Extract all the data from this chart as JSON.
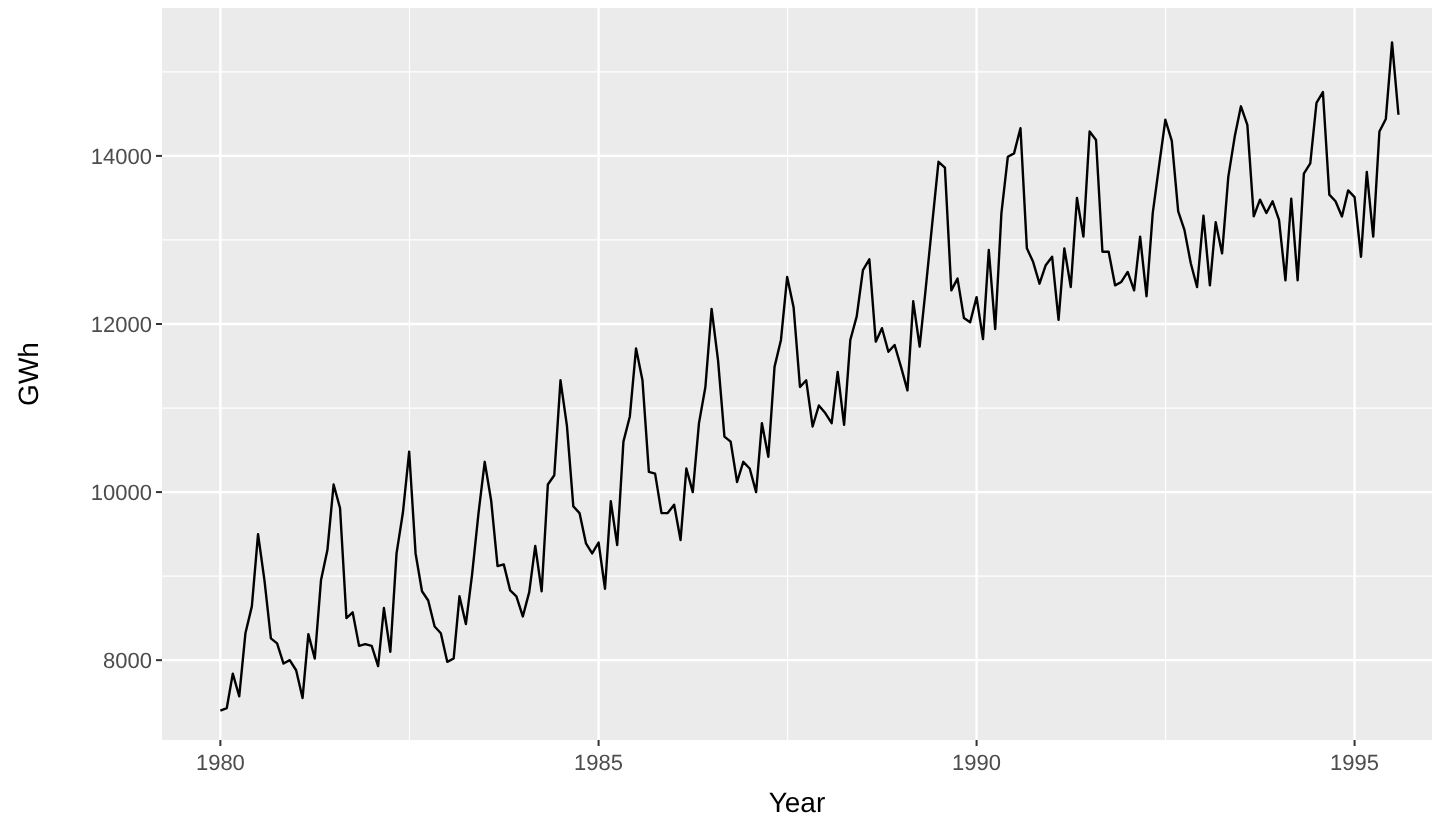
{
  "chart_data": {
    "type": "line",
    "xlabel": "Year",
    "ylabel": "GWh",
    "xlim": [
      "1979-03-25",
      "1996-01-10"
    ],
    "xticks": [
      "1980",
      "1985",
      "1990",
      "1995"
    ],
    "ylim": [
      7050,
      15760
    ],
    "yticks": [
      8000,
      10000,
      12000,
      14000
    ],
    "grid": true,
    "x": [
      "1980-01",
      "1980-02",
      "1980-03",
      "1980-04",
      "1980-05",
      "1980-06",
      "1980-07",
      "1980-08",
      "1980-09",
      "1980-10",
      "1980-11",
      "1980-12",
      "1981-01",
      "1981-02",
      "1981-03",
      "1981-04",
      "1981-05",
      "1981-06",
      "1981-07",
      "1981-08",
      "1981-09",
      "1981-10",
      "1981-11",
      "1981-12",
      "1982-01",
      "1982-02",
      "1982-03",
      "1982-04",
      "1982-05",
      "1982-06",
      "1982-07",
      "1982-08",
      "1982-09",
      "1982-10",
      "1982-11",
      "1982-12",
      "1983-01",
      "1983-02",
      "1983-03",
      "1983-04",
      "1983-05",
      "1983-06",
      "1983-07",
      "1983-08",
      "1983-09",
      "1983-10",
      "1983-11",
      "1983-12",
      "1984-01",
      "1984-02",
      "1984-03",
      "1984-04",
      "1984-05",
      "1984-06",
      "1984-07",
      "1984-08",
      "1984-09",
      "1984-10",
      "1984-11",
      "1984-12",
      "1985-01",
      "1985-02",
      "1985-03",
      "1985-04",
      "1985-05",
      "1985-06",
      "1985-07",
      "1985-08",
      "1985-09",
      "1985-10",
      "1985-11",
      "1985-12",
      "1986-01",
      "1986-02",
      "1986-03",
      "1986-04",
      "1986-05",
      "1986-06",
      "1986-07",
      "1986-08",
      "1986-09",
      "1986-10",
      "1986-11",
      "1986-12",
      "1987-01",
      "1987-02",
      "1987-03",
      "1987-04",
      "1987-05",
      "1987-06",
      "1987-07",
      "1987-08",
      "1987-09",
      "1987-10",
      "1987-11",
      "1987-12",
      "1988-01",
      "1988-02",
      "1988-03",
      "1988-04",
      "1988-05",
      "1988-06",
      "1988-07",
      "1988-08",
      "1988-09",
      "1988-10",
      "1988-11",
      "1988-12",
      "1989-01",
      "1989-02",
      "1989-03",
      "1989-04",
      "1989-05",
      "1989-06",
      "1989-07",
      "1989-08",
      "1989-09",
      "1989-10",
      "1989-11",
      "1989-12",
      "1990-01",
      "1990-02",
      "1990-03",
      "1990-04",
      "1990-05",
      "1990-06",
      "1990-07",
      "1990-08",
      "1990-09",
      "1990-10",
      "1990-11",
      "1990-12",
      "1991-01",
      "1991-02",
      "1991-03",
      "1991-04",
      "1991-05",
      "1991-06",
      "1991-07",
      "1991-08",
      "1991-09",
      "1991-10",
      "1991-11",
      "1991-12",
      "1992-01",
      "1992-02",
      "1992-03",
      "1992-04",
      "1992-05",
      "1992-06",
      "1992-07",
      "1992-08",
      "1992-09",
      "1992-10",
      "1992-11",
      "1992-12",
      "1993-01",
      "1993-02",
      "1993-03",
      "1993-04",
      "1993-05",
      "1993-06",
      "1993-07",
      "1993-08",
      "1993-09",
      "1993-10",
      "1993-11",
      "1993-12",
      "1994-01",
      "1994-02",
      "1994-03",
      "1994-04",
      "1994-05",
      "1994-06",
      "1994-07",
      "1994-08",
      "1994-09",
      "1994-10",
      "1994-11",
      "1994-12",
      "1995-01",
      "1995-02",
      "1995-03",
      "1995-04",
      "1995-05",
      "1995-06",
      "1995-07",
      "1995-08"
    ],
    "series": [
      {
        "color": "#000000",
        "values": [
          7400,
          7430,
          7840,
          7570,
          8320,
          8640,
          9500,
          8950,
          8260,
          8200,
          7960,
          8000,
          7880,
          7550,
          8310,
          8020,
          8950,
          9310,
          10090,
          9810,
          8500,
          8570,
          8170,
          8190,
          8170,
          7930,
          8620,
          8100,
          9270,
          9760,
          10480,
          9270,
          8820,
          8710,
          8400,
          8320,
          7980,
          8020,
          8760,
          8430,
          9020,
          9750,
          10360,
          9900,
          9120,
          9140,
          8830,
          8760,
          8520,
          8810,
          9360,
          8820,
          10090,
          10200,
          11330,
          10790,
          9830,
          9750,
          9390,
          9270,
          9400,
          8850,
          9890,
          9370,
          10600,
          10900,
          11710,
          11330,
          10240,
          10220,
          9750,
          9750,
          9850,
          9430,
          10280,
          10000,
          10820,
          11250,
          12180,
          11570,
          10660,
          10600,
          10120,
          10360,
          10280,
          10000,
          10820,
          10420,
          11490,
          11810,
          12560,
          12200,
          11250,
          11330,
          10780,
          11030,
          10940,
          10820,
          11430,
          10800,
          11810,
          12090,
          12640,
          12770,
          11790,
          11950,
          11670,
          11750,
          11490,
          11210,
          12270,
          11730,
          12440,
          13200,
          13930,
          13860,
          12400,
          12540,
          12070,
          12020,
          12320,
          11820,
          12880,
          11940,
          13320,
          13990,
          14030,
          14330,
          12900,
          12740,
          12480,
          12700,
          12800,
          12050,
          12900,
          12440,
          13500,
          13040,
          14290,
          14190,
          12860,
          12860,
          12460,
          12500,
          12620,
          12400,
          13040,
          12330,
          13320,
          13890,
          14430,
          14180,
          13340,
          13120,
          12720,
          12440,
          13290,
          12460,
          13210,
          12840,
          13750,
          14230,
          14590,
          14370,
          13280,
          13480,
          13320,
          13460,
          13240,
          12520,
          13490,
          12520,
          13790,
          13910,
          14630,
          14760,
          13540,
          13460,
          13280,
          13590,
          13510,
          12800,
          13810,
          13040,
          14290,
          14440,
          15350,
          14490
        ]
      }
    ]
  }
}
